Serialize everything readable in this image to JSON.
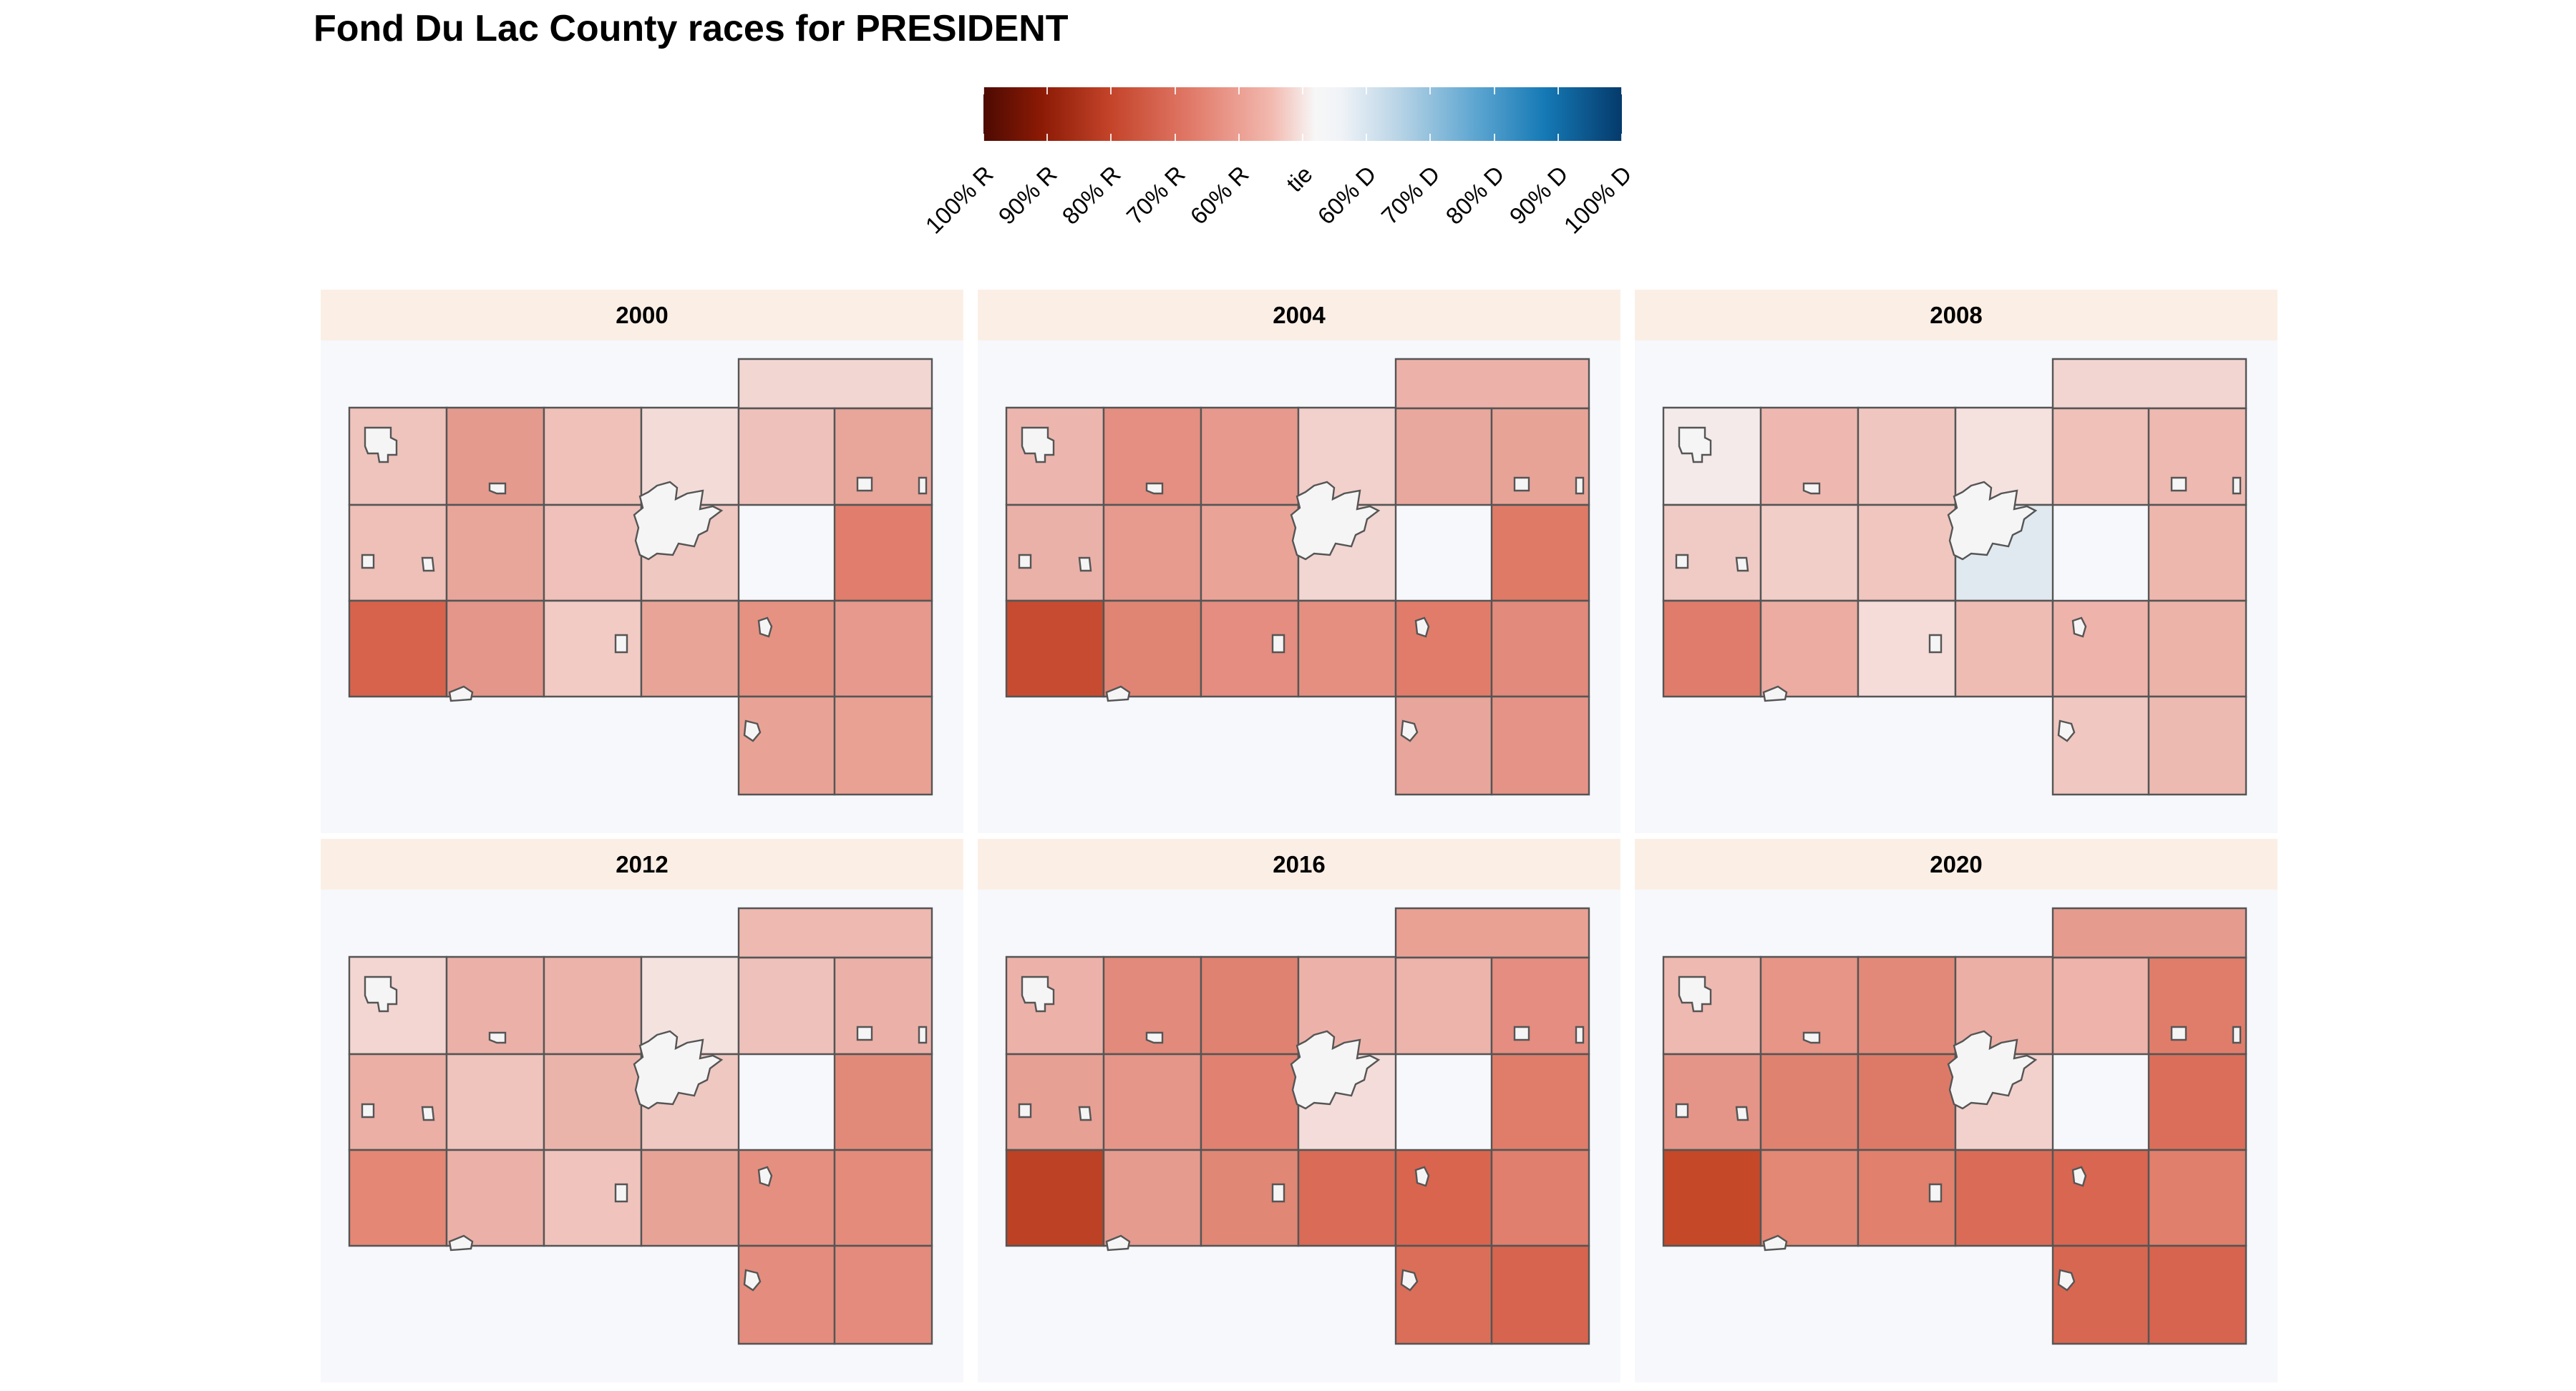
{
  "title": "Fond Du Lac County races for PRESIDENT",
  "legend": {
    "ticks": [
      "100% R",
      "90% R",
      "80% R",
      "70% R",
      "60% R",
      "tie",
      "60% D",
      "70% D",
      "80% D",
      "90% D",
      "100% D"
    ],
    "colors": {
      "r100": "#4d0a02",
      "r90": "#8b1a05",
      "r80": "#c4442a",
      "r70": "#e07766",
      "r60": "#f2b8ae",
      "tie": "#f7f7f7",
      "d60": "#b9d4e6",
      "d70": "#5ea6d1",
      "d80": "#1579b5",
      "d100": "#053a6b"
    }
  },
  "panels": [
    {
      "label": "2000",
      "fills": [
        "#efc4bd",
        "#e59a8e",
        "#efc1b9",
        "#f3dcd8",
        "#f2d6d2",
        "#eec0b8",
        "#e8a69b",
        "#efc1ba",
        "#efc8c2",
        "#eec2bb",
        "#e8a599",
        "#e17d6c",
        "#d7634c",
        "#e4968a",
        "#f2cbc5",
        "#e8a597",
        "#e59283",
        "#e7998d",
        "#e9a396",
        "#e9a194"
      ]
    },
    {
      "label": "2004",
      "fills": [
        "#ecb6ae",
        "#e48f81",
        "#e7998d",
        "#f2d0cb",
        "#ecb2a9",
        "#eab1a8",
        "#e69b8e",
        "#e9a497",
        "#f1d6d2",
        "#e9a89d",
        "#e8a397",
        "#df7a67",
        "#c74b31",
        "#e08574",
        "#e48d80",
        "#e58f81",
        "#e17c6a",
        "#e28a7b",
        "#e8a59b",
        "#e59386"
      ]
    },
    {
      "label": "2008",
      "fills": [
        "#f5eaea",
        "#eeb8b0",
        "#f0c7c0",
        "#f5e1de",
        "#f2d5d1",
        "#f0cbc5",
        "#f2cec9",
        "#f1c6bf",
        "#e0e9ef",
        "#f0c1b9",
        "#eeb9b0",
        "#eeb7ae",
        "#e07c6b",
        "#ecaca2",
        "#f5dcd8",
        "#efbcb4",
        "#eeb3aa",
        "#ecb3a9",
        "#f0c7c1",
        "#edbab2"
      ]
    },
    {
      "label": "2012",
      "fills": [
        "#f3d6d2",
        "#ebb1a9",
        "#ecb3aa",
        "#f4e2df",
        "#eeb9b1",
        "#ebafa6",
        "#efc4bd",
        "#ebb4ab",
        "#efc8c2",
        "#eec2bb",
        "#ebb1a8",
        "#e28a7a",
        "#e48775",
        "#ebb0a7",
        "#f0c4bd",
        "#e8a397",
        "#e58f81",
        "#e48b7c",
        "#e48c7d",
        "#e48b7d"
      ]
    },
    {
      "label": "2016",
      "fills": [
        "#ecb2a9",
        "#e28a7b",
        "#e08271",
        "#ecb2a9",
        "#e9a194",
        "#e7a094",
        "#e59688",
        "#e08171",
        "#f3dcd9",
        "#ecb4ab",
        "#e48d80",
        "#df7d6a",
        "#bd4124",
        "#e69b8f",
        "#e08775",
        "#d96b57",
        "#d9654f",
        "#e07f6d",
        "#db6e58",
        "#d7644e"
      ]
    },
    {
      "label": "2020",
      "fills": [
        "#eeb9b1",
        "#e69587",
        "#e38979",
        "#ebafa6",
        "#e69b8f",
        "#e59587",
        "#e08270",
        "#dd7a67",
        "#f2d1cd",
        "#eeb3aa",
        "#e07d6a",
        "#db6e5a",
        "#c54829",
        "#e28874",
        "#e1806d",
        "#da6c57",
        "#d86651",
        "#e07f6c",
        "#d86752",
        "#d7644e"
      ]
    }
  ]
}
